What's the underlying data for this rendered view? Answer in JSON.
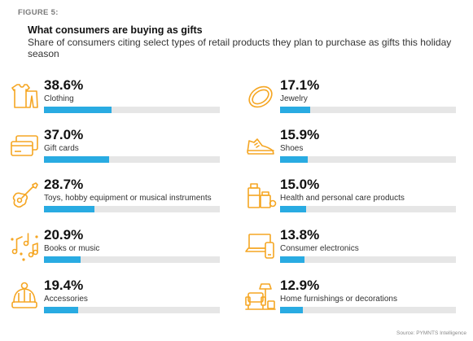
{
  "figure_label": "FIGURE 5:",
  "source": "Source: PYMNTS Intelligence",
  "colors": {
    "bar_fill": "#29abe2",
    "bar_track": "#e6e6e6",
    "icon": "#f5a623"
  },
  "chart_data": {
    "type": "bar",
    "title": "What consumers are buying as gifts",
    "subtitle": "Share of consumers citing select types of retail products they plan to purchase as gifts this holiday season",
    "xlabel": "",
    "ylabel": "",
    "ylim": [
      0,
      100
    ],
    "unit": "%",
    "items": [
      {
        "category": "Clothing",
        "value": 38.6,
        "label": "38.6%",
        "icon": "clothing-icon"
      },
      {
        "category": "Gift cards",
        "value": 37.0,
        "label": "37.0%",
        "icon": "gift-card-icon"
      },
      {
        "category": "Toys, hobby equipment or musical instruments",
        "value": 28.7,
        "label": "28.7%",
        "icon": "guitar-icon"
      },
      {
        "category": "Books or music",
        "value": 20.9,
        "label": "20.9%",
        "icon": "music-notes-icon"
      },
      {
        "category": "Accessories",
        "value": 19.4,
        "label": "19.4%",
        "icon": "beanie-hat-icon"
      },
      {
        "category": "Jewelry",
        "value": 17.1,
        "label": "17.1%",
        "icon": "ring-icon"
      },
      {
        "category": "Shoes",
        "value": 15.9,
        "label": "15.9%",
        "icon": "sneaker-icon"
      },
      {
        "category": "Health and personal care products",
        "value": 15.0,
        "label": "15.0%",
        "icon": "care-products-icon"
      },
      {
        "category": "Consumer electronics",
        "value": 13.8,
        "label": "13.8%",
        "icon": "laptop-phone-icon"
      },
      {
        "category": "Home furnishings or decorations",
        "value": 12.9,
        "label": "12.9%",
        "icon": "armchair-lamp-icon"
      }
    ]
  }
}
